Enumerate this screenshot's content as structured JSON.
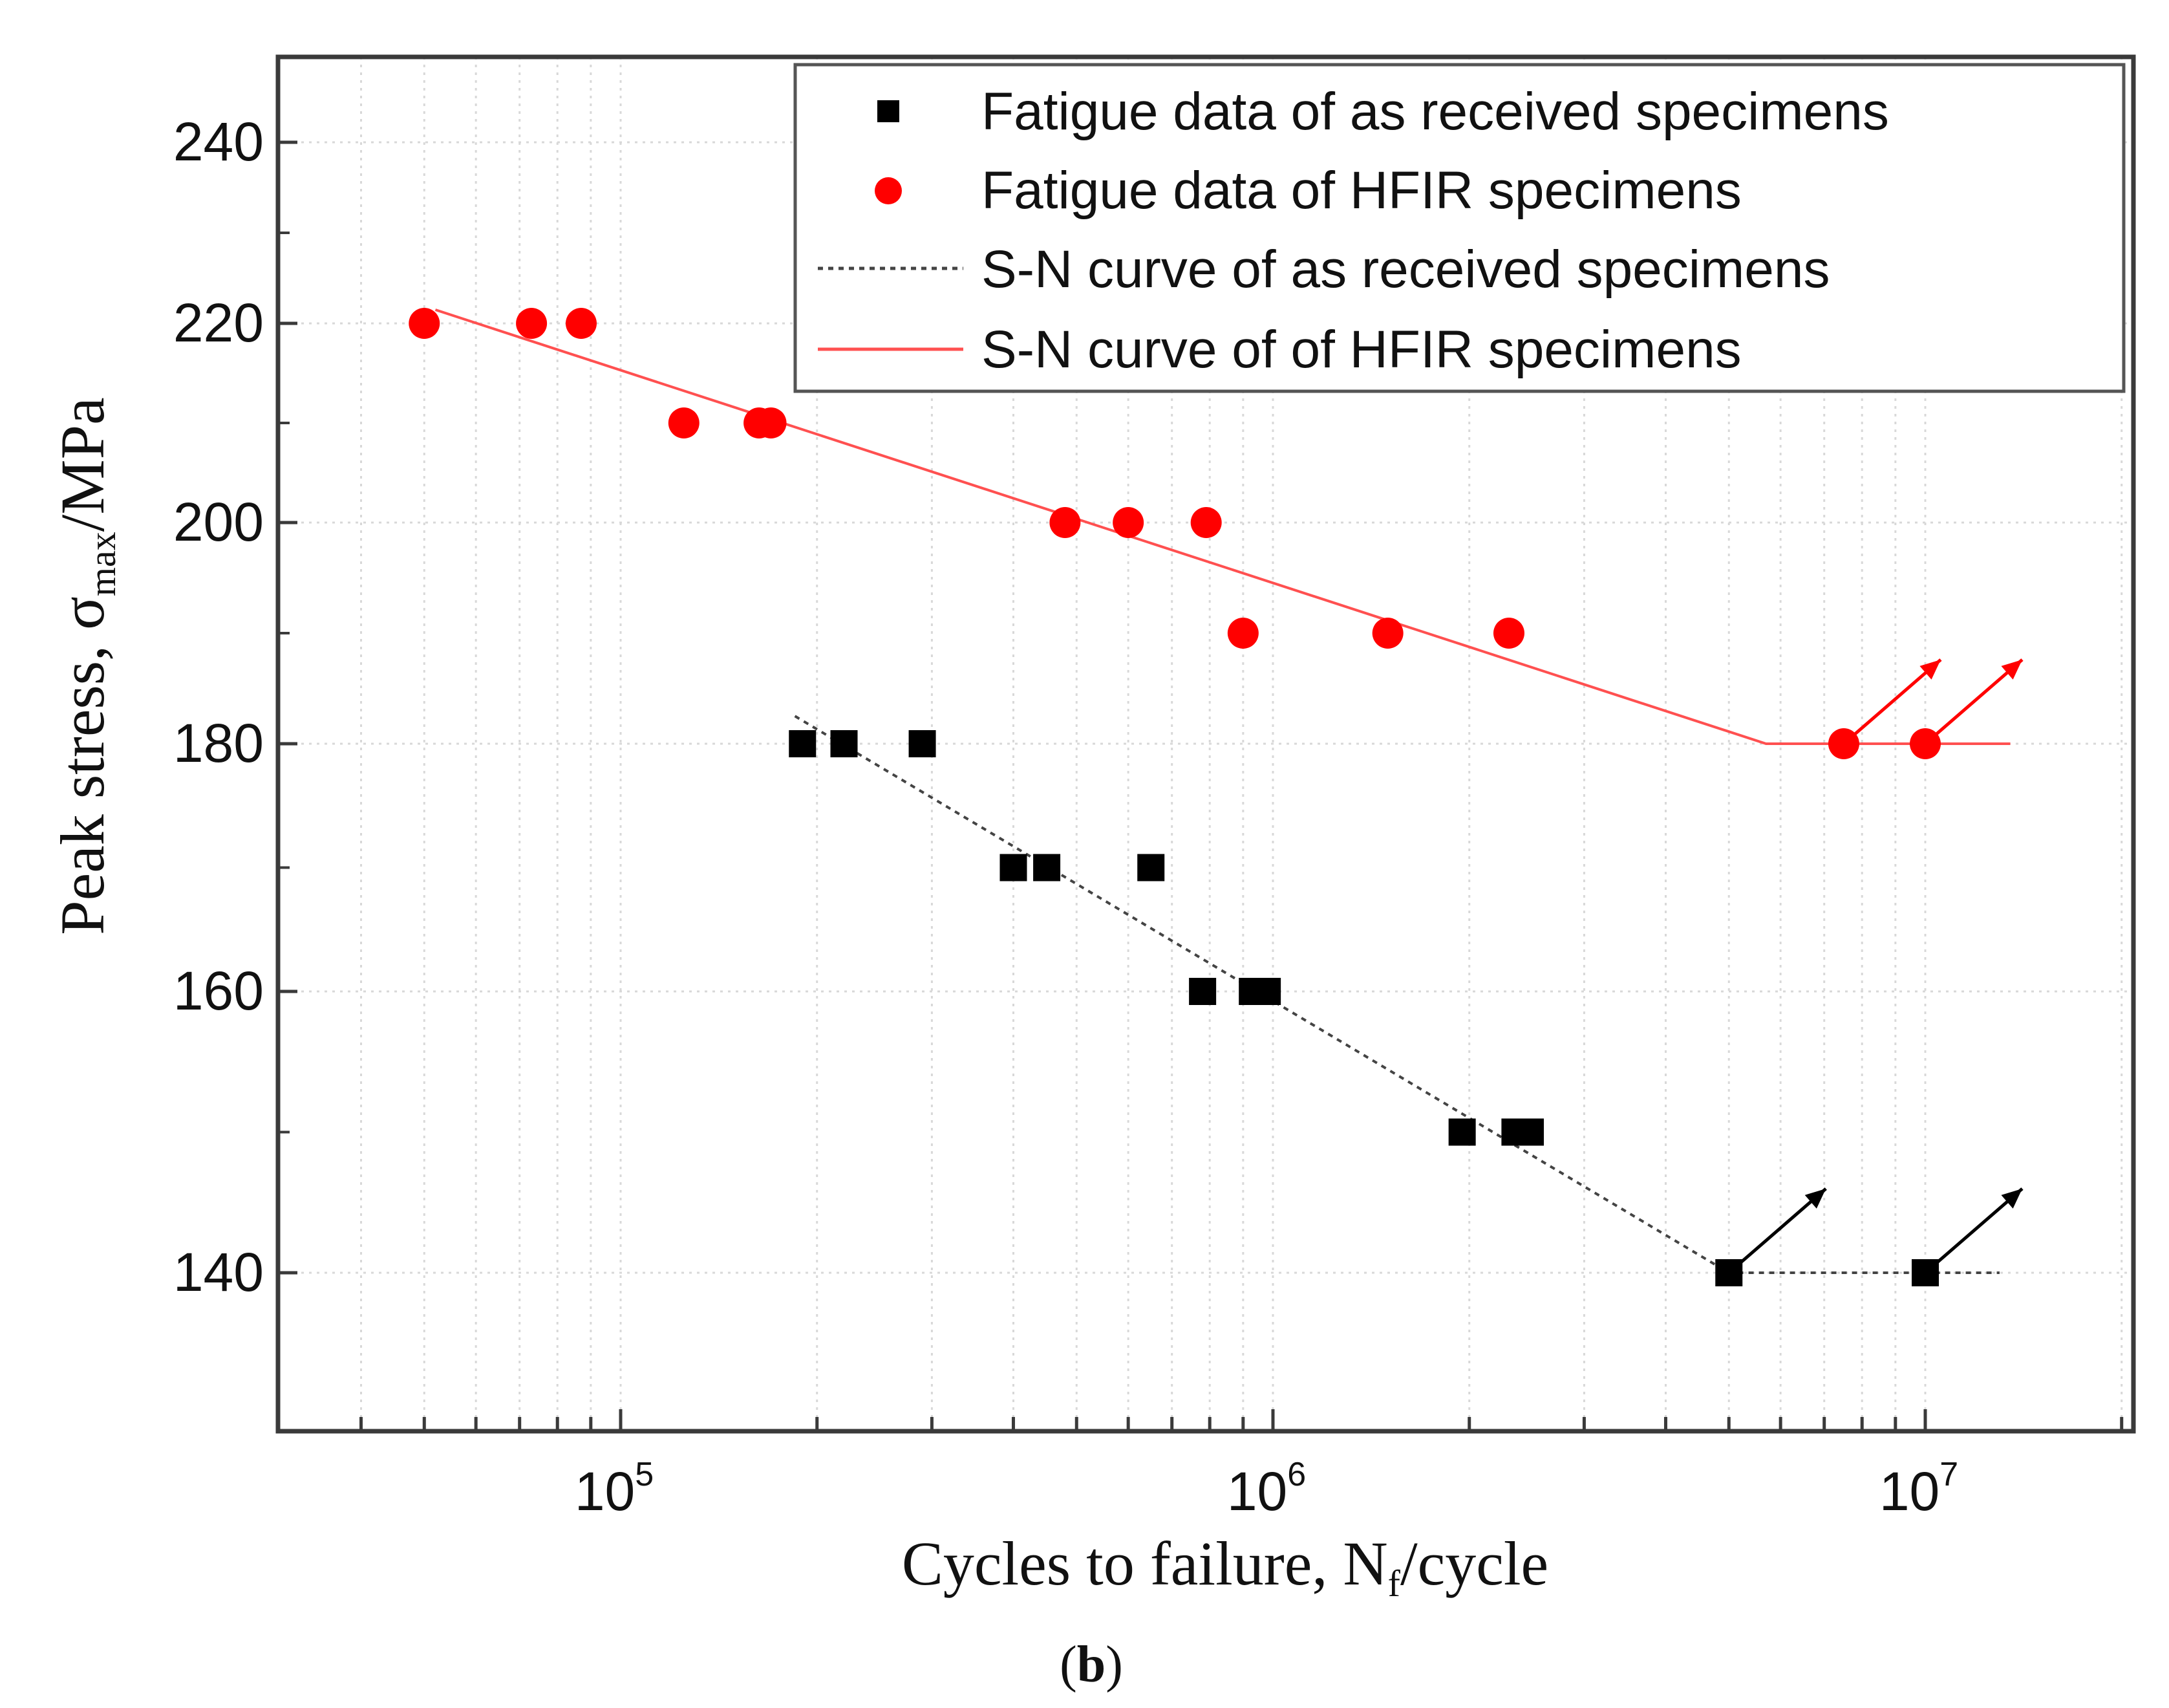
{
  "chart_data": {
    "type": "scatter",
    "x_scale": "log",
    "xlim": [
      30000,
      20000000
    ],
    "ylim": [
      127,
      249
    ],
    "y_axis_note": "y axis is non-linear; ticks 140,160,180,200,220,240 unevenly spaced",
    "x_ticks": [
      {
        "value": 100000,
        "base": "10",
        "exp": "5"
      },
      {
        "value": 1000000,
        "base": "10",
        "exp": "6"
      },
      {
        "value": 10000000,
        "base": "10",
        "exp": "7"
      }
    ],
    "y_ticks": [
      "140",
      "160",
      "180",
      "200",
      "220",
      "240"
    ],
    "xlabel": {
      "main": "Cycles to failure, N",
      "sub": "f",
      "tail": "/cycle"
    },
    "ylabel": {
      "main": "Peak stress, σ",
      "sub": "max",
      "tail": "/MPa"
    },
    "caption": {
      "open": "(",
      "letter": "b",
      "close": ")"
    },
    "grid": true,
    "legend_position": "top-right",
    "series": [
      {
        "name": "Fatigue data of as received specimens",
        "kind": "points",
        "marker": "square",
        "color": "#000000",
        "points": [
          [
            190000,
            180
          ],
          [
            220000,
            180
          ],
          [
            290000,
            180
          ],
          [
            400000,
            170
          ],
          [
            450000,
            170
          ],
          [
            650000,
            170
          ],
          [
            780000,
            160
          ],
          [
            930000,
            160
          ],
          [
            980000,
            160
          ],
          [
            1950000,
            150
          ],
          [
            2350000,
            150
          ],
          [
            2480000,
            150
          ],
          [
            5000000,
            140
          ],
          [
            10000000,
            140
          ]
        ],
        "runouts": [
          [
            5000000,
            140
          ],
          [
            10000000,
            140
          ]
        ]
      },
      {
        "name": "Fatigue data of HFIR specimens",
        "kind": "points",
        "marker": "circle",
        "color": "#ff0000",
        "points": [
          [
            50000,
            220
          ],
          [
            73000,
            220
          ],
          [
            87000,
            220
          ],
          [
            125000,
            210
          ],
          [
            163000,
            210
          ],
          [
            170000,
            210
          ],
          [
            480000,
            200
          ],
          [
            600000,
            200
          ],
          [
            790000,
            200
          ],
          [
            900000,
            190
          ],
          [
            1500000,
            190
          ],
          [
            2300000,
            190
          ],
          [
            7500000,
            180
          ],
          [
            10000000,
            180
          ]
        ],
        "runouts": [
          [
            7500000,
            180
          ],
          [
            10000000,
            180
          ]
        ]
      },
      {
        "name": "S-N curve of as received specimens",
        "kind": "line",
        "style": "dotted",
        "color": "#000000",
        "points": [
          [
            185000,
            182.5
          ],
          [
            5000000,
            140
          ],
          [
            13000000,
            140
          ]
        ]
      },
      {
        "name": "S-N curve of of HFIR specimens",
        "kind": "line",
        "style": "solid",
        "color": "#ff0000",
        "points": [
          [
            52000,
            221.5
          ],
          [
            5700000,
            180
          ],
          [
            13500000,
            180
          ]
        ]
      }
    ]
  }
}
